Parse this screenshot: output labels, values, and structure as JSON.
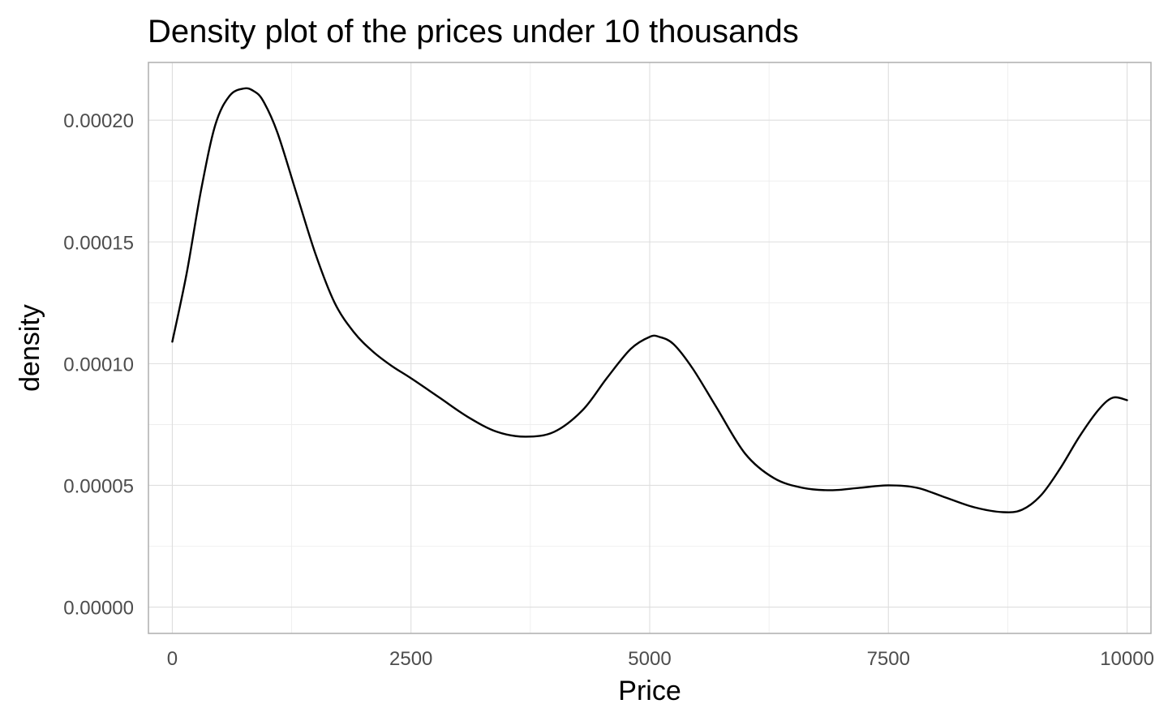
{
  "chart_data": {
    "type": "line",
    "title": "Density plot of the prices under 10 thousands",
    "xlabel": "Price",
    "ylabel": "density",
    "xlim": [
      -250,
      10250
    ],
    "ylim": [
      -1.08e-05,
      0.0002237
    ],
    "x_ticks": [
      0,
      2500,
      5000,
      7500,
      10000
    ],
    "x_tick_labels": [
      "0",
      "2500",
      "5000",
      "7500",
      "10000"
    ],
    "y_ticks": [
      0,
      5e-05,
      0.0001,
      0.00015,
      0.0002
    ],
    "y_tick_labels": [
      "0.00000",
      "0.00005",
      "0.00010",
      "0.00015",
      "0.00020"
    ],
    "grid": true,
    "legend": "none",
    "series": [
      {
        "name": "density",
        "color": "#000000",
        "x": [
          0,
          150,
          300,
          450,
          600,
          750,
          850,
          950,
          1100,
          1300,
          1500,
          1700,
          1900,
          2100,
          2300,
          2500,
          2800,
          3100,
          3400,
          3700,
          4000,
          4300,
          4550,
          4800,
          5000,
          5100,
          5250,
          5450,
          5700,
          6000,
          6300,
          6600,
          6900,
          7200,
          7500,
          7800,
          8100,
          8400,
          8700,
          8900,
          9100,
          9300,
          9500,
          9700,
          9850,
          10000
        ],
        "y": [
          0.000109,
          0.000137,
          0.000171,
          0.000198,
          0.00021,
          0.000213,
          0.000212,
          0.000208,
          0.000195,
          0.00017,
          0.000145,
          0.000125,
          0.000113,
          0.000105,
          9.9e-05,
          9.4e-05,
          8.6e-05,
          7.8e-05,
          7.2e-05,
          7e-05,
          7.2e-05,
          8.1e-05,
          9.4e-05,
          0.000106,
          0.000111,
          0.000111,
          0.000108,
          9.8e-05,
          8.2e-05,
          6.3e-05,
          5.3e-05,
          4.9e-05,
          4.8e-05,
          4.9e-05,
          5e-05,
          4.9e-05,
          4.5e-05,
          4.1e-05,
          3.9e-05,
          4e-05,
          4.6e-05,
          5.7e-05,
          7e-05,
          8.1e-05,
          8.6e-05,
          8.5e-05
        ]
      }
    ]
  }
}
